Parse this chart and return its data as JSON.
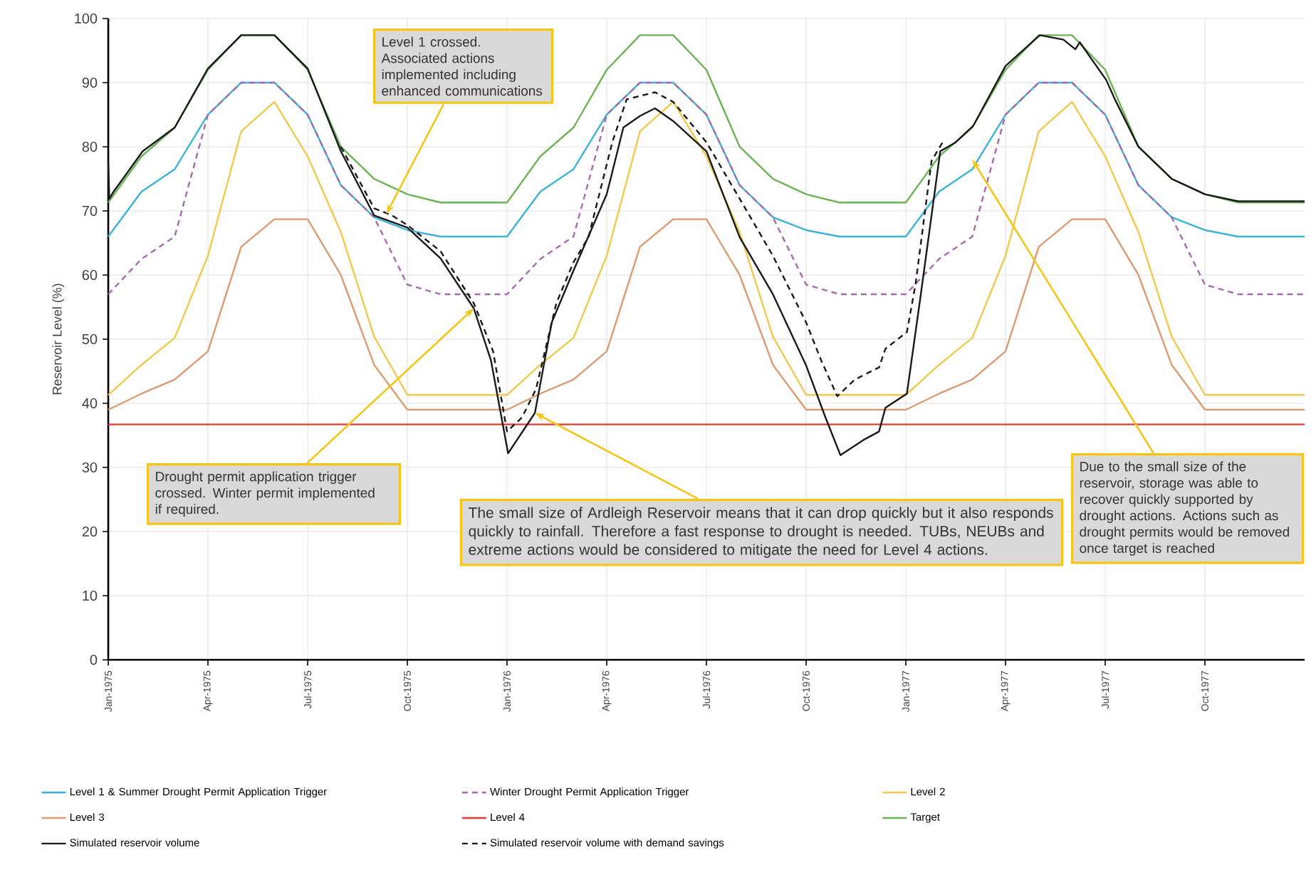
{
  "chart_data": {
    "type": "line",
    "ylabel": "Reservoir Level (%)",
    "x": [
      "1975-01",
      "1975-02",
      "1975-03",
      "1975-04",
      "1975-05",
      "1975-06",
      "1975-07",
      "1975-08",
      "1975-09",
      "1975-10",
      "1975-11",
      "1975-12",
      "1976-01",
      "1976-02",
      "1976-03",
      "1976-04",
      "1976-05",
      "1976-06",
      "1976-07",
      "1976-08",
      "1976-09",
      "1976-10",
      "1976-11",
      "1976-12",
      "1977-01",
      "1977-02",
      "1977-03",
      "1977-04",
      "1977-05",
      "1977-06",
      "1977-07",
      "1977-08",
      "1977-09",
      "1977-10",
      "1977-11",
      "1977-12",
      "1978-01"
    ],
    "xlim": [
      "1975-01",
      "1978-01"
    ],
    "xticks": [
      {
        "value": "1975-01",
        "label": "Jan-1975"
      },
      {
        "value": "1975-04",
        "label": "Apr-1975"
      },
      {
        "value": "1975-07",
        "label": "Jul-1975"
      },
      {
        "value": "1975-10",
        "label": "Oct-1975"
      },
      {
        "value": "1976-01",
        "label": "Jan-1976"
      },
      {
        "value": "1976-04",
        "label": "Apr-1976"
      },
      {
        "value": "1976-07",
        "label": "Jul-1976"
      },
      {
        "value": "1976-10",
        "label": "Oct-1976"
      },
      {
        "value": "1977-01",
        "label": "Jan-1977"
      },
      {
        "value": "1977-04",
        "label": "Apr-1977"
      },
      {
        "value": "1977-07",
        "label": "Jul-1977"
      },
      {
        "value": "1977-10",
        "label": "Oct-1977"
      }
    ],
    "ylim": [
      0,
      100
    ],
    "yticks": [
      0,
      10,
      20,
      30,
      40,
      50,
      60,
      70,
      80,
      90,
      100
    ],
    "grid": true,
    "legend": "bottom",
    "series": [
      {
        "name": "Level 1 & Summer Drought Permit Application Trigger",
        "color": "#3bb4d8",
        "values": [
          66,
          73,
          76.5,
          85,
          90,
          90,
          85,
          74,
          69,
          67,
          66,
          66,
          66,
          73,
          76.5,
          85,
          90,
          90,
          85,
          74,
          69,
          67,
          66,
          66,
          66,
          73,
          76.5,
          85,
          90,
          90,
          85,
          74,
          69,
          67,
          66,
          66,
          66
        ]
      },
      {
        "name": "Winter Drought Permit Application Trigger",
        "color": "#a86aae",
        "line_style": "dashed",
        "values": [
          57,
          62.5,
          66,
          85,
          90,
          90,
          85,
          74,
          69,
          58.5,
          57,
          57,
          57,
          62.5,
          66,
          85,
          90,
          90,
          85,
          74,
          69,
          58.5,
          57,
          57,
          57,
          62.5,
          66,
          85,
          90,
          90,
          85,
          74,
          69,
          58.5,
          57,
          57,
          57
        ]
      },
      {
        "name": "Level 2",
        "color": "#f2c94c",
        "values": [
          41.3,
          46,
          50.2,
          63,
          82.4,
          87,
          78.5,
          66.7,
          50.4,
          41.3,
          41.3,
          41.3,
          41.3,
          46,
          50.2,
          63,
          82.4,
          87,
          78.5,
          66.7,
          50.4,
          41.3,
          41.3,
          41.3,
          41.3,
          46,
          50.2,
          63,
          82.4,
          87,
          78.5,
          66.7,
          50.4,
          41.3,
          41.3,
          41.3,
          41.3
        ]
      },
      {
        "name": "Level 3",
        "color": "#de9a72",
        "values": [
          39,
          41.5,
          43.7,
          48.1,
          64.4,
          68.7,
          68.7,
          60,
          46,
          39,
          39,
          39,
          39,
          41.5,
          43.7,
          48.1,
          64.4,
          68.7,
          68.7,
          60,
          46,
          39,
          39,
          39,
          39,
          41.5,
          43.7,
          48.1,
          64.4,
          68.7,
          68.7,
          60,
          46,
          39,
          39,
          39,
          39
        ]
      },
      {
        "name": "Level 4",
        "color": "#e53935",
        "values": [
          36.7,
          36.7,
          36.7,
          36.7,
          36.7,
          36.7,
          36.7,
          36.7,
          36.7,
          36.7,
          36.7,
          36.7,
          36.7,
          36.7,
          36.7,
          36.7,
          36.7,
          36.7,
          36.7,
          36.7,
          36.7,
          36.7,
          36.7,
          36.7,
          36.7,
          36.7,
          36.7,
          36.7,
          36.7,
          36.7,
          36.7,
          36.7,
          36.7,
          36.7,
          36.7,
          36.7,
          36.7
        ]
      },
      {
        "name": "Target",
        "color": "#6cb356",
        "values": [
          71.3,
          78.5,
          83,
          92,
          97.4,
          97.4,
          92,
          80,
          75,
          72.6,
          71.3,
          71.3,
          71.3,
          78.5,
          83,
          92,
          97.4,
          97.4,
          92,
          80,
          75,
          72.6,
          71.3,
          71.3,
          71.3,
          78.5,
          83,
          92,
          97.4,
          97.4,
          92,
          80,
          75,
          72.6,
          71.3,
          71.3,
          71.3
        ]
      },
      {
        "name": "Simulated reservoir volume",
        "color": "#1a1a1a",
        "x": [
          "1975-01-01",
          "1975-01-02",
          "1975-01-06",
          "1975-02-02",
          "1975-03-01",
          "1975-04-01",
          "1975-05-01",
          "1975-06-01",
          "1975-07-01",
          "1975-08-01",
          "1975-09-01",
          "1975-10-01",
          "1975-11-01",
          "1975-12-01",
          "1975-12-17",
          "1976-01-02",
          "1976-01-27",
          "1976-02-11",
          "1976-03-01",
          "1976-04-01",
          "1976-04-16",
          "1976-05-01",
          "1976-05-15",
          "1976-06-01",
          "1976-07-01",
          "1976-08-01",
          "1976-09-01",
          "1976-10-01",
          "1976-10-19",
          "1976-11-02",
          "1976-11-24",
          "1976-12-07",
          "1976-12-13",
          "1977-01-02",
          "1977-01-15",
          "1977-02-02",
          "1977-02-15",
          "1977-03-02",
          "1977-04-01",
          "1977-05-02",
          "1977-05-24",
          "1977-06-04",
          "1977-06-08",
          "1977-07-02",
          "1977-07-10",
          "1977-08-01",
          "1977-09-01",
          "1977-10-01",
          "1977-11-01",
          "1978-01-01"
        ],
        "values": [
          77.4,
          71.9,
          73,
          79.3,
          83,
          92.2,
          97.4,
          97.4,
          92.2,
          79.3,
          69.3,
          67.4,
          62.6,
          54.8,
          46.7,
          32.2,
          38.5,
          52.6,
          60.7,
          72.6,
          83,
          84.8,
          86,
          84,
          79.3,
          65.9,
          57,
          45.9,
          37.8,
          31.9,
          34.4,
          35.6,
          39.3,
          41.5,
          57,
          79.3,
          80.7,
          83.3,
          92.6,
          97.4,
          96.7,
          95.2,
          96.3,
          90.4,
          87.4,
          80,
          75,
          72.6,
          71.5,
          71.5
        ]
      },
      {
        "name": "Simulated reservoir volume with demand savings",
        "color": "#1a1a1a",
        "line_style": "dashed",
        "x": [
          "1975-08-01",
          "1975-09-01",
          "1975-09-17",
          "1975-10-01",
          "1975-11-01",
          "1975-12-01",
          "1975-12-19",
          "1976-01-01",
          "1976-01-15",
          "1976-01-28",
          "1976-02-15",
          "1976-03-01",
          "1976-03-15",
          "1976-04-06",
          "1976-04-19",
          "1976-05-15",
          "1976-06-01",
          "1976-07-01",
          "1976-08-01",
          "1976-09-01",
          "1976-10-01",
          "1976-10-15",
          "1976-10-30",
          "1976-11-15",
          "1976-12-07",
          "1976-12-13",
          "1977-01-02",
          "1977-01-10",
          "1977-01-25",
          "1977-02-04"
        ],
        "values": [
          80,
          70.4,
          69.3,
          67.8,
          63.7,
          55.6,
          48.1,
          35.6,
          37.8,
          42.2,
          55.6,
          62,
          65.9,
          80.7,
          87.4,
          88.5,
          87,
          80.7,
          71.9,
          63,
          52.6,
          46.7,
          41.1,
          43.7,
          45.6,
          48.5,
          51.1,
          58.5,
          77.8,
          80.7
        ]
      }
    ],
    "annotations": [
      {
        "text": "Level 1 crossed. Associated actions implemented including enhanced communications",
        "x": "1975-09-12",
        "y": 69.5
      },
      {
        "text": "Drought permit application trigger crossed. Winter permit implemented if required.",
        "x": "1975-12-01",
        "y": 54.8
      },
      {
        "text": "The small size of Ardleigh Reservoir means that it can drop quickly but it also responds quickly to rainfall. Therefore a fast response to drought is needed. TUBs, NEUBs and extreme actions would be considered to mitigate the need for Level 4 actions.",
        "x": "1976-01-27",
        "y": 38.5
      },
      {
        "text": "Due to the small size of the reservoir, storage was able to recover quickly supported by drought actions. Actions such as drought permits would be removed once target is reached",
        "x": "1977-03-01",
        "y": 78
      }
    ]
  }
}
